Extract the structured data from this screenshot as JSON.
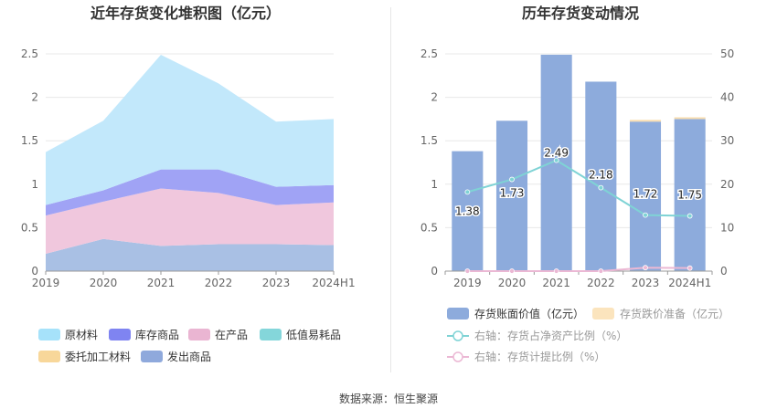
{
  "footer": {
    "source": "数据来源：恒生聚源"
  },
  "chart_data": [
    {
      "type": "area",
      "stacked": true,
      "title": "近年存货变化堆积图（亿元）",
      "categories": [
        "2019",
        "2020",
        "2021",
        "2022",
        "2023",
        "2024H1"
      ],
      "ylim": [
        0,
        2.5
      ],
      "yticks": [
        "0",
        "0.5",
        "1",
        "1.5",
        "2",
        "2.5"
      ],
      "grid": true,
      "legend_position": "bottom",
      "series": [
        {
          "name": "发出商品",
          "color": "#a9c0e4",
          "values": [
            0.2,
            0.37,
            0.29,
            0.31,
            0.31,
            0.3
          ]
        },
        {
          "name": "委托加工材料",
          "color": "#f8d79a",
          "values": [
            0,
            0,
            0,
            0,
            0,
            0
          ]
        },
        {
          "name": "低值易耗品",
          "color": "#89d6dc",
          "values": [
            0,
            0,
            0,
            0,
            0,
            0
          ]
        },
        {
          "name": "在产品",
          "color": "#f0c7dd",
          "values": [
            0.44,
            0.43,
            0.66,
            0.59,
            0.45,
            0.49
          ]
        },
        {
          "name": "库存商品",
          "color": "#a0a3f5",
          "values": [
            0.12,
            0.13,
            0.22,
            0.27,
            0.21,
            0.2
          ]
        },
        {
          "name": "原材料",
          "color": "#c2e8fb",
          "values": [
            0.61,
            0.8,
            1.32,
            0.99,
            0.75,
            0.76
          ]
        }
      ],
      "legend_order": [
        "原材料",
        "库存商品",
        "在产品",
        "低值易耗品",
        "委托加工材料",
        "发出商品"
      ],
      "legend_colors": {
        "原材料": "#a6e2fa",
        "库存商品": "#7f84f1",
        "在产品": "#eab5d2",
        "低值易耗品": "#84d6da",
        "委托加工材料": "#f8d79a",
        "发出商品": "#8fa9dc"
      }
    },
    {
      "type": "bar+line",
      "title": "历年存货变动情况",
      "categories": [
        "2019",
        "2020",
        "2021",
        "2022",
        "2023",
        "2024H1"
      ],
      "ylim": [
        0,
        2.5
      ],
      "yticks": [
        "0",
        "0.5",
        "1",
        "1.5",
        "2",
        "2.5"
      ],
      "y2lim": [
        0,
        50
      ],
      "y2ticks": [
        "0",
        "10",
        "20",
        "30",
        "40",
        "50"
      ],
      "grid": true,
      "legend_position": "bottom",
      "bars": [
        {
          "name": "存货账面价值（亿元）",
          "color": "#8dabdc",
          "values": [
            1.38,
            1.73,
            2.49,
            2.18,
            1.72,
            1.75
          ]
        },
        {
          "name": "存货跌价准备（亿元）",
          "color": "#f8dcae",
          "values": [
            0,
            0,
            0,
            0,
            0.02,
            0.02
          ]
        }
      ],
      "bar_labels": [
        "1.38",
        "1.73",
        "2.49",
        "2.18",
        "1.72",
        "1.75"
      ],
      "lines": [
        {
          "name": "右轴：存货占净资产比例（%）",
          "color": "#7fd3d5",
          "values": [
            18.2,
            21.1,
            25.5,
            19.2,
            12.9,
            12.7
          ]
        },
        {
          "name": "右轴：存货计提比例（%）",
          "color": "#ebb8d4",
          "values": [
            0,
            0,
            0,
            0,
            0.8,
            0.7
          ]
        }
      ]
    }
  ]
}
